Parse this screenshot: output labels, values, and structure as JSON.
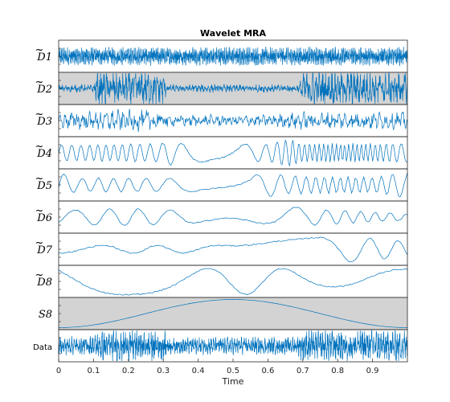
{
  "chart_data": {
    "type": "line",
    "title": "Wavelet MRA",
    "xlabel": "Time",
    "xlim": [
      0,
      1
    ],
    "x_ticks": [
      "0",
      "0.1",
      "0.2",
      "0.3",
      "0.4",
      "0.5",
      "0.6",
      "0.7",
      "0.8",
      "0.9"
    ],
    "x_tick_values": [
      0,
      0.1,
      0.2,
      0.3,
      0.4,
      0.5,
      0.6,
      0.7,
      0.8,
      0.9
    ],
    "line_color": "#0072bd",
    "highlight_color": "#d3d3d3",
    "series": [
      {
        "name": "D1",
        "label_base": "D",
        "label_sub": "1",
        "highlighted": false,
        "approx_cycles_per_unit": 220,
        "amplitude_profile": [
          [
            0,
            0.45
          ],
          [
            1,
            0.45
          ]
        ]
      },
      {
        "name": "D2",
        "label_base": "D",
        "label_sub": "2",
        "highlighted": true,
        "approx_cycles_per_unit": 110,
        "amplitude_profile": [
          [
            0,
            0.18
          ],
          [
            0.1,
            0.2
          ],
          [
            0.11,
            0.9
          ],
          [
            0.3,
            0.9
          ],
          [
            0.31,
            0.2
          ],
          [
            0.69,
            0.2
          ],
          [
            0.7,
            0.9
          ],
          [
            1,
            0.9
          ]
        ]
      },
      {
        "name": "D3",
        "label_base": "D",
        "label_sub": "3",
        "highlighted": false,
        "approx_cycles_per_unit": 60,
        "amplitude_profile": [
          [
            0,
            0.4
          ],
          [
            0.1,
            0.55
          ],
          [
            0.3,
            0.55
          ],
          [
            0.32,
            0.3
          ],
          [
            0.6,
            0.3
          ],
          [
            0.7,
            0.45
          ],
          [
            1,
            0.45
          ]
        ]
      },
      {
        "name": "D4",
        "label_base": "D",
        "label_sub": "4",
        "highlighted": false,
        "approx_cycles_per_unit": 32,
        "amplitude_profile": [
          [
            0,
            0.5
          ],
          [
            0.3,
            0.6
          ],
          [
            0.31,
            0.85
          ],
          [
            0.35,
            0.6
          ],
          [
            0.6,
            0.55
          ],
          [
            0.66,
            0.9
          ],
          [
            0.7,
            0.6
          ],
          [
            1,
            0.6
          ]
        ]
      },
      {
        "name": "D5",
        "label_base": "D",
        "label_sub": "5",
        "highlighted": false,
        "approx_cycles_per_unit": 17,
        "amplitude_profile": [
          [
            0,
            0.85
          ],
          [
            0.05,
            0.45
          ],
          [
            0.55,
            0.4
          ],
          [
            0.58,
            0.85
          ],
          [
            0.65,
            0.6
          ],
          [
            0.9,
            0.5
          ],
          [
            1,
            0.85
          ]
        ]
      },
      {
        "name": "D6",
        "label_base": "D",
        "label_sub": "6",
        "highlighted": false,
        "approx_cycles_per_unit": 8.5,
        "amplitude_profile": [
          [
            0,
            0.45
          ],
          [
            0.2,
            0.55
          ],
          [
            0.5,
            0.3
          ],
          [
            0.62,
            0.95
          ],
          [
            0.7,
            0.55
          ],
          [
            1,
            0.2
          ]
        ]
      },
      {
        "name": "D7",
        "label_base": "D",
        "label_sub": "7",
        "highlighted": false,
        "approx_cycles_per_unit": 4.5,
        "amplitude_profile": [
          [
            0,
            0.25
          ],
          [
            0.5,
            0.25
          ],
          [
            0.8,
            0.9
          ],
          [
            1,
            0.5
          ]
        ]
      },
      {
        "name": "D8",
        "label_base": "D",
        "label_sub": "8",
        "highlighted": false,
        "approx_cycles_per_unit": 2.4,
        "amplitude_profile": [
          [
            0,
            0.9
          ],
          [
            1,
            0.8
          ]
        ]
      },
      {
        "name": "S8",
        "label_base": "S",
        "label_sub": "8",
        "highlighted": true,
        "approx_cycles_per_unit": 1,
        "amplitude_profile": [
          [
            0,
            0.9
          ],
          [
            1,
            0.9
          ]
        ]
      },
      {
        "name": "Data",
        "label_text": "Data",
        "highlighted": false,
        "approx_cycles_per_unit": 150,
        "amplitude_profile": [
          [
            0,
            0.45
          ],
          [
            0.1,
            0.5
          ],
          [
            0.12,
            0.8
          ],
          [
            0.3,
            0.8
          ],
          [
            0.32,
            0.45
          ],
          [
            0.68,
            0.45
          ],
          [
            0.7,
            0.8
          ],
          [
            1,
            0.8
          ]
        ]
      }
    ]
  }
}
